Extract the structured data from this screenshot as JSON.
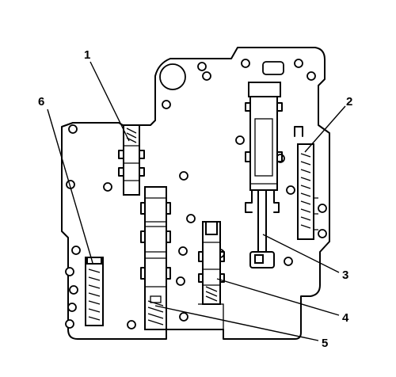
{
  "callouts": [
    {
      "label": "1"
    },
    {
      "label": "2"
    },
    {
      "label": "3"
    },
    {
      "label": "4"
    },
    {
      "label": "5"
    },
    {
      "label": "6"
    }
  ]
}
